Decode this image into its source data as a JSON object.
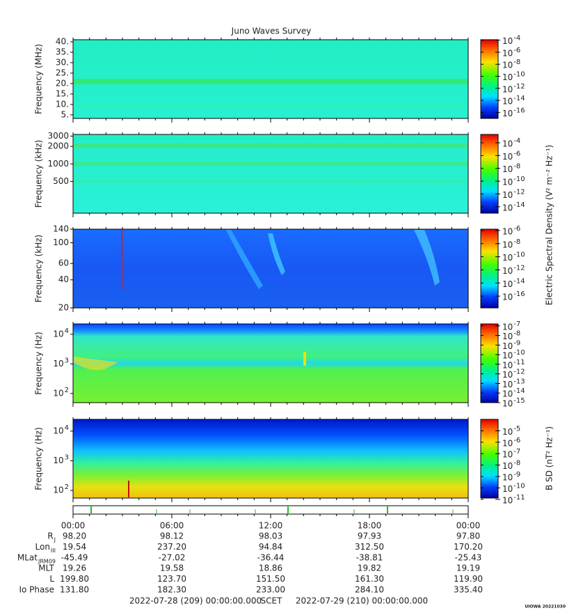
{
  "title": "Juno Waves Survey",
  "chart_data": [
    {
      "type": "spectrogram",
      "ylabel": "Frequency (MHz)",
      "yscale": "linear",
      "ylim": [
        3.3,
        41
      ],
      "yticks": [
        {
          "value": 40,
          "label": "40."
        },
        {
          "value": 35,
          "label": "35."
        },
        {
          "value": 30,
          "label": "30."
        },
        {
          "value": 25,
          "label": "25."
        },
        {
          "value": 20,
          "label": "20."
        },
        {
          "value": 15,
          "label": "15."
        },
        {
          "value": 10,
          "label": "10."
        },
        {
          "value": 5,
          "label": "5."
        }
      ],
      "colorbar": {
        "scale": "log",
        "clim": [
          1e-17,
          0.00012
        ],
        "ticks": [
          {
            "value": 0.0001,
            "label": "10",
            "exponent": "-4"
          },
          {
            "value": 1e-06,
            "label": "10",
            "exponent": "-6"
          },
          {
            "value": 1e-08,
            "label": "10",
            "exponent": "-8"
          },
          {
            "value": 1e-10,
            "label": "10",
            "exponent": "-10"
          },
          {
            "value": 1e-12,
            "label": "10",
            "exponent": "-12"
          },
          {
            "value": 1e-14,
            "label": "10",
            "exponent": "-14"
          },
          {
            "value": 1e-16,
            "label": "10",
            "exponent": "-16"
          }
        ]
      }
    },
    {
      "type": "spectrogram",
      "ylabel": "Frequency (kHz)",
      "yscale": "log",
      "ylim": [
        143,
        3200
      ],
      "yticks": [
        3000,
        2000,
        1000,
        500
      ],
      "colorbar": {
        "scale": "log",
        "clim": [
          1e-15,
          0.002
        ],
        "ticks": [
          {
            "value": 0.0001,
            "label": "10",
            "exponent": "-4"
          },
          {
            "value": 1e-06,
            "label": "10",
            "exponent": "-6"
          },
          {
            "value": 1e-08,
            "label": "10",
            "exponent": "-8"
          },
          {
            "value": 1e-10,
            "label": "10",
            "exponent": "-10"
          },
          {
            "value": 1e-12,
            "label": "10",
            "exponent": "-12"
          },
          {
            "value": 1e-14,
            "label": "10",
            "exponent": "-14"
          }
        ]
      }
    },
    {
      "type": "spectrogram",
      "ylabel": "Frequency (kHz)",
      "yscale": "log",
      "ylim": [
        20,
        140
      ],
      "yticks": [
        140,
        100,
        60,
        40,
        20
      ],
      "colorbar": {
        "scale": "log",
        "clim": [
          1.6e-18,
          1.6e-06
        ],
        "ticks": [
          {
            "value": 1e-06,
            "label": "10",
            "exponent": "-6"
          },
          {
            "value": 1e-08,
            "label": "10",
            "exponent": "-8"
          },
          {
            "value": 1e-10,
            "label": "10",
            "exponent": "-10"
          },
          {
            "value": 1e-12,
            "label": "10",
            "exponent": "-12"
          },
          {
            "value": 1e-14,
            "label": "10",
            "exponent": "-14"
          },
          {
            "value": 1e-16,
            "label": "10",
            "exponent": "-16"
          }
        ]
      }
    },
    {
      "type": "spectrogram",
      "ylabel": "Frequency (Hz)",
      "yscale": "log",
      "ylim": [
        49,
        22400
      ],
      "yticks": [
        {
          "value": 10000,
          "label": "10",
          "exponent": "4"
        },
        {
          "value": 1000,
          "label": "10",
          "exponent": "3"
        },
        {
          "value": 100,
          "label": "10",
          "exponent": "2"
        }
      ],
      "colorbar": {
        "scale": "log",
        "clim": [
          1e-15,
          1.6e-07
        ],
        "ticks": [
          {
            "value": 1e-07,
            "label": "10",
            "exponent": "-7"
          },
          {
            "value": 1e-08,
            "label": "10",
            "exponent": "-8"
          },
          {
            "value": 1e-09,
            "label": "10",
            "exponent": "-9"
          },
          {
            "value": 1e-10,
            "label": "10",
            "exponent": "-10"
          },
          {
            "value": 1e-11,
            "label": "10",
            "exponent": "-11"
          },
          {
            "value": 1e-12,
            "label": "10",
            "exponent": "-12"
          },
          {
            "value": 1e-13,
            "label": "10",
            "exponent": "-13"
          },
          {
            "value": 1e-14,
            "label": "10",
            "exponent": "-14"
          },
          {
            "value": 1e-15,
            "label": "10",
            "exponent": "-15"
          }
        ]
      }
    },
    {
      "type": "spectrogram",
      "ylabel": "Frequency (Hz)",
      "yscale": "log",
      "ylim": [
        55,
        25000
      ],
      "yticks": [
        {
          "value": 10000,
          "label": "10",
          "exponent": "4"
        },
        {
          "value": 1000,
          "label": "10",
          "exponent": "3"
        },
        {
          "value": 100,
          "label": "10",
          "exponent": "2"
        }
      ],
      "colorbar": {
        "scale": "log",
        "clim": [
          1.3e-11,
          0.0001
        ],
        "ticks": [
          {
            "value": 1e-05,
            "label": "10",
            "exponent": "-5"
          },
          {
            "value": 1e-06,
            "label": "10",
            "exponent": "-6"
          },
          {
            "value": 1e-07,
            "label": "10",
            "exponent": "-7"
          },
          {
            "value": 1e-08,
            "label": "10",
            "exponent": "-8"
          },
          {
            "value": 1e-09,
            "label": "10",
            "exponent": "-9"
          },
          {
            "value": 1e-10,
            "label": "10",
            "exponent": "-10"
          },
          {
            "value": 1e-11,
            "label": "10",
            "exponent": "-11"
          }
        ]
      }
    }
  ],
  "colorbar_labels": [
    "Electric Spectral Density (V² m⁻² Hz⁻¹)",
    "B SD (nT² Hz⁻¹)"
  ],
  "time_axis": {
    "xlim": [
      0,
      24
    ],
    "minor_step": 1,
    "xticks": [
      {
        "value": 0,
        "label": "00:00"
      },
      {
        "value": 6,
        "label": "06:00"
      },
      {
        "value": 12,
        "label": "12:00"
      },
      {
        "value": 18,
        "label": "18:00"
      },
      {
        "value": 24,
        "label": "00:00"
      }
    ]
  },
  "ephemeris": {
    "rows": [
      {
        "label": "R",
        "sub": "J",
        "values": [
          "98.20",
          "98.12",
          "98.03",
          "97.93",
          "97.80"
        ]
      },
      {
        "label": "Lon",
        "sub": "III",
        "values": [
          "19.54",
          "237.20",
          "94.84",
          "312.50",
          "170.20"
        ]
      },
      {
        "label": "MLat",
        "sub": "JRM09",
        "values": [
          "-45.49",
          "-27.02",
          "-36.44",
          "-38.81",
          "-25.43"
        ]
      },
      {
        "label": "MLT",
        "values": [
          "19.26",
          "19.58",
          "18.86",
          "19.82",
          "19.19"
        ]
      },
      {
        "label": "L",
        "values": [
          "199.80",
          "123.70",
          "151.50",
          "161.30",
          "119.90"
        ]
      },
      {
        "label": "Io Phase",
        "values": [
          "131.80",
          "182.30",
          "233.00",
          "284.10",
          "335.40"
        ]
      }
    ]
  },
  "footer": {
    "start": "2022-07-28 (209) 00:00:00.000",
    "center": "SCET",
    "end": "2022-07-29 (210) 00:00:00.000"
  },
  "stamp": "UIOWA 20221030"
}
